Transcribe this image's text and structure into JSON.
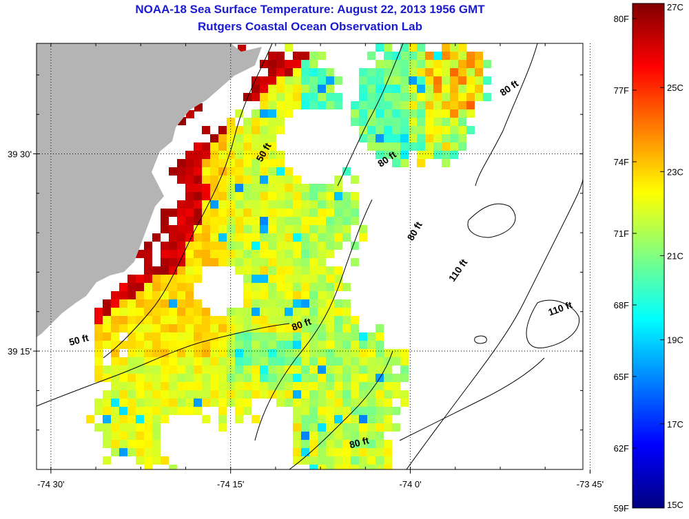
{
  "title": "NOAA-18 Sea Surface Temperature:  August 22, 2013 1956 GMT",
  "subtitle": "Rutgers Coastal Ocean Observation Lab",
  "map": {
    "lon_ticks": [
      {
        "value": -74.5,
        "label": "-74 30'"
      },
      {
        "value": -74.25,
        "label": "-74 15'"
      },
      {
        "value": -74.0,
        "label": "-74 0'"
      },
      {
        "value": -73.75,
        "label": "-73 45'"
      }
    ],
    "lat_ticks": [
      {
        "value": 39.5,
        "label": "39 30'"
      },
      {
        "value": 39.25,
        "label": "39 15'"
      }
    ],
    "lon_range": [
      -74.52,
      -73.76
    ],
    "lat_range": [
      39.1,
      39.64
    ],
    "land_color": "#b4b4b4",
    "contour_labels": [
      {
        "text": "50 ft",
        "lon": -74.2,
        "lat": 39.5
      },
      {
        "text": "50 ft",
        "lon": -74.46,
        "lat": 39.26
      },
      {
        "text": "80 ft",
        "lon": -74.03,
        "lat": 39.49
      },
      {
        "text": "80 ft",
        "lon": -73.86,
        "lat": 39.58
      },
      {
        "text": "80 ft",
        "lon": -73.99,
        "lat": 39.4
      },
      {
        "text": "80 ft",
        "lon": -74.15,
        "lat": 39.28
      },
      {
        "text": "80 ft",
        "lon": -74.07,
        "lat": 39.13
      },
      {
        "text": "110 ft",
        "lon": -73.93,
        "lat": 39.35
      },
      {
        "text": "110 ft",
        "lon": -73.79,
        "lat": 39.3
      }
    ]
  },
  "colorbar": {
    "fahrenheit": [
      "80F",
      "77F",
      "74F",
      "71F",
      "68F",
      "65F",
      "62F",
      "59F"
    ],
    "celsius": [
      "27C",
      "25C",
      "23C",
      "21C",
      "19C",
      "17C",
      "15C"
    ],
    "range_c": [
      15,
      27
    ],
    "stops": [
      "#000080",
      "#0000ff",
      "#0080ff",
      "#00ffff",
      "#80ff80",
      "#ffff00",
      "#ff8000",
      "#ff0000",
      "#800000"
    ]
  }
}
